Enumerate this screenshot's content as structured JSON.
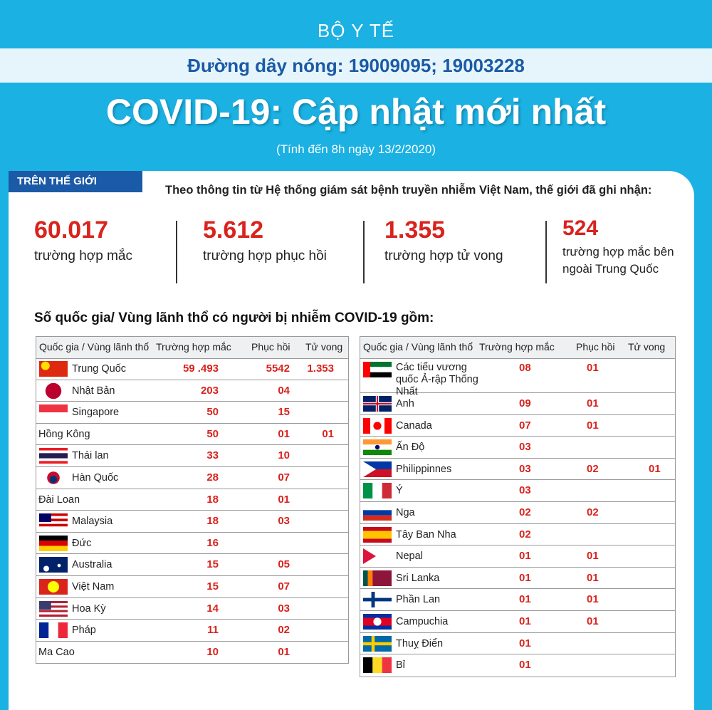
{
  "header": {
    "ministry": "BỘ Y TẾ",
    "hotline": "Đường dây nóng: 19009095; 19003228"
  },
  "title": "COVID-19: Cập nhật mới nhất",
  "subtitle": "(Tính đến 8h ngày 13/2/2020)",
  "section": "TRÊN THẾ GIỚI",
  "intro": "Theo thông tin từ Hệ thống giám sát bệnh truyền nhiễm Việt Nam, thế giới đã ghi nhận:",
  "stats": [
    {
      "value": "60.017",
      "label": "trường hợp mắc"
    },
    {
      "value": "5.612",
      "label": "trường hợp phục hồi"
    },
    {
      "value": "1.355",
      "label": "trường hợp tử vong"
    },
    {
      "value": "524",
      "label": "trường hợp mắc bên ngoài Trung Quốc"
    }
  ],
  "table_heading": "Số quốc gia/ Vùng lãnh thổ có người bị nhiễm COVID-19 gồm:",
  "tables": {
    "left": {
      "header": [
        "Quốc gia / Vùng lãnh thổ",
        "Trường hợp mắc",
        "Phục hồi",
        "Tử vong"
      ],
      "rows": [
        [
          "Trung Quốc",
          "59 .493",
          "5542",
          "1.353"
        ],
        [
          "Nhật Bản",
          "203",
          "04",
          null
        ],
        [
          "Singapore",
          "50",
          "15",
          null
        ],
        [
          "Hồng Kông",
          "50",
          "01",
          "01"
        ],
        [
          "Thái lan",
          "33",
          "10",
          null
        ],
        [
          "Hàn Quốc",
          "28",
          "07",
          null
        ],
        [
          "Đài Loan",
          "18",
          "01",
          null
        ],
        [
          "Malaysia",
          "18",
          "03",
          null
        ],
        [
          "Đức",
          "16",
          null,
          null
        ],
        [
          "Australia",
          "15",
          "05",
          null
        ],
        [
          "Việt Nam",
          "15",
          "07",
          null
        ],
        [
          "Hoa Kỳ",
          "14",
          "03",
          null
        ],
        [
          "Pháp",
          "11",
          "02",
          null
        ],
        [
          "Ma Cao",
          "10",
          "01",
          null
        ]
      ]
    },
    "right": {
      "header": [
        "Quốc gia / Vùng lãnh thổ",
        "Trường hợp mắc",
        "Phục hồi",
        "Tử vong"
      ],
      "rows": [
        [
          "Các tiểu vương quốc Ả-rập Thống Nhất",
          "08",
          "01",
          null
        ],
        [
          "Anh",
          "09",
          "01",
          null
        ],
        [
          "Canada",
          "07",
          "01",
          null
        ],
        [
          "Ấn Độ",
          "03",
          null,
          null
        ],
        [
          "Philippinnes",
          "03",
          "02",
          "01"
        ],
        [
          "Ý",
          "03",
          null,
          null
        ],
        [
          "Nga",
          "02",
          "02",
          null
        ],
        [
          "Tây Ban Nha",
          "02",
          null,
          null
        ],
        [
          "Nepal",
          "01",
          "01",
          null
        ],
        [
          "Sri Lanka",
          "01",
          "01",
          null
        ],
        [
          "Phần Lan",
          "01",
          "01",
          null
        ],
        [
          "Campuchia",
          "01",
          "01",
          null
        ],
        [
          "Thuỵ Điển",
          "01",
          null,
          null
        ],
        [
          "Bỉ",
          "01",
          null,
          null
        ]
      ]
    }
  }
}
